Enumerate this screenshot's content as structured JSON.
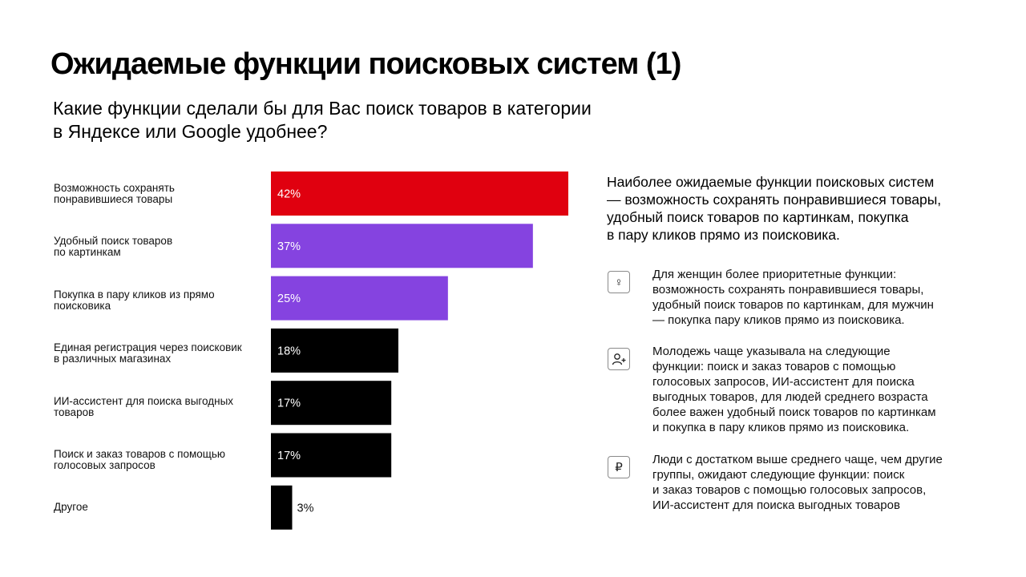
{
  "title": "Ожидаемые функции поисковых систем (1)",
  "subtitle": "Какие функции сделали бы для Вас поиск товаров в категории\nв Яндексе или Google удобнее?",
  "colors": {
    "red": "#E0000F",
    "purple": "#8543E0",
    "black": "#000000"
  },
  "chart_data": {
    "type": "bar",
    "orientation": "horizontal",
    "categories": [
      "Возможность сохранять\nпонравившиеся товары",
      "Удобный поиск товаров\nпо картинкам",
      "Покупка в пару кликов из прямо\nпоисковика",
      "Единая регистрация через поисковик\nв различных магазинах",
      "ИИ-ассистент для поиска выгодных\nтоваров",
      "Поиск и заказ товаров с помощью\nголосовых запросов",
      "Другое"
    ],
    "values": [
      42,
      37,
      25,
      18,
      17,
      17,
      3
    ],
    "value_labels": [
      "42%",
      "37%",
      "25%",
      "18%",
      "17%",
      "17%",
      "3%"
    ],
    "bar_colors": [
      "#E0000F",
      "#8543E0",
      "#8543E0",
      "#000000",
      "#000000",
      "#000000",
      "#000000"
    ],
    "xlim": [
      0,
      42
    ],
    "unit": "%",
    "grid": false,
    "legend": "none"
  },
  "summary": "Наиболее ожидаемые функции поисковых систем\n— возможность сохранять понравившиеся товары,\nудобный поиск товаров по картинкам, покупка\nв пару кликов прямо из поисковика.",
  "notes": [
    {
      "icon": "female-symbol-icon",
      "text": "Для женщин более приоритетные функции:\nвозможность сохранять понравившиеся товары,\nудобный поиск товаров по картинкам, для мужчин\n— покупка пару кликов прямо из поисковика."
    },
    {
      "icon": "person-plus-icon",
      "text": "Молодежь чаще указывала на следующие\nфункции: поиск и заказ товаров с помощью\nголосовых запросов, ИИ-ассистент для поиска\nвыгодных товаров, для людей среднего возраста\nболее важен удобный поиск товаров по картинкам\nи покупка в пару кликов прямо из поисковика."
    },
    {
      "icon": "ruble-icon",
      "text": "Люди с достатком выше среднего чаще, чем другие\nгруппы, ожидают следующие функции: поиск\nи заказ товаров с помощью голосовых запросов,\nИИ-ассистент для поиска выгодных товаров"
    }
  ]
}
